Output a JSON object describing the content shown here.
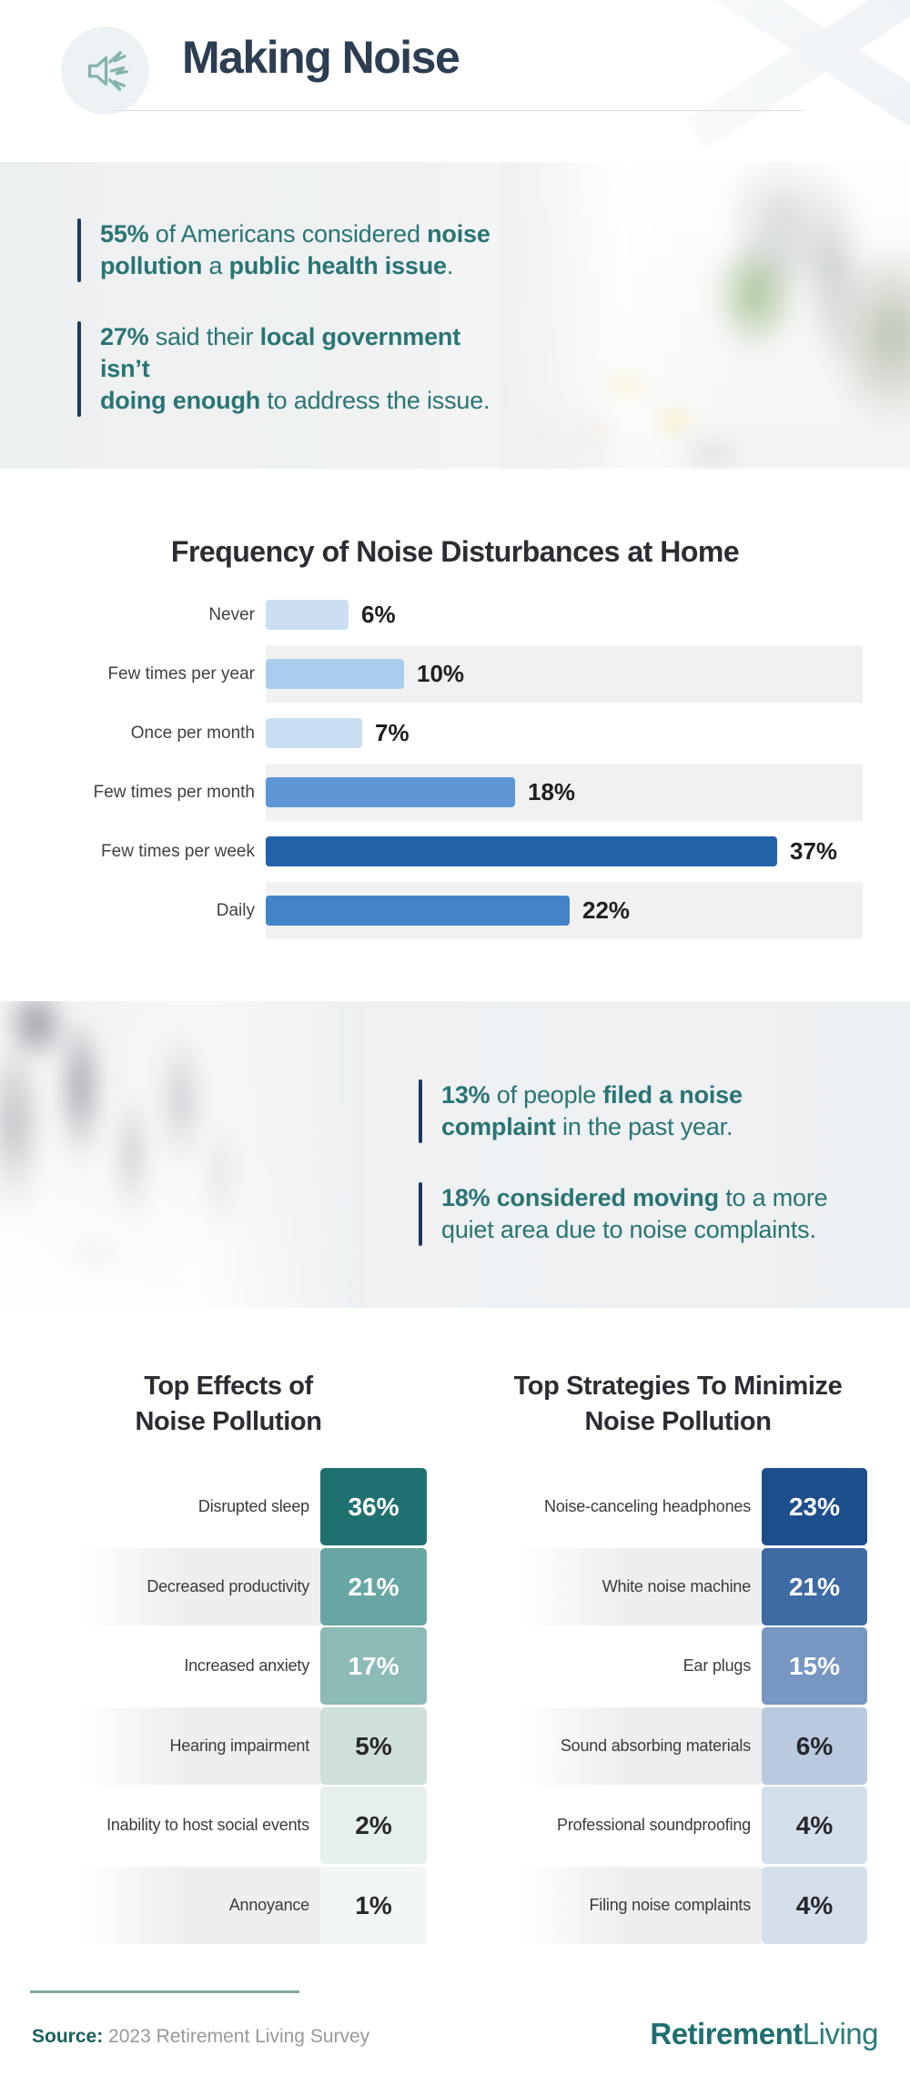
{
  "header": {
    "title": "Making Noise",
    "icon": "megaphone-icon"
  },
  "colors": {
    "navy": "#2d3e52",
    "teal": "#2a7474",
    "accent_bar": "#1c3a5e",
    "section_bg": "#edf0f2",
    "stripe": "#f1f1f2",
    "title_dark": "#2b2d33",
    "footer_line": "#7fa7a6",
    "logo_teal": "#1f6f70",
    "source_gray": "#97999b"
  },
  "stats_top": {
    "items": [
      {
        "lines": [
          [
            {
              "t": "55%",
              "b": true
            },
            {
              "t": " of Americans considered ",
              "b": false
            },
            {
              "t": "noise",
              "b": true
            }
          ],
          [
            {
              "t": "pollution",
              "b": true
            },
            {
              "t": " a ",
              "b": false
            },
            {
              "t": "public health issue",
              "b": true
            },
            {
              "t": ".",
              "b": false
            }
          ]
        ]
      },
      {
        "lines": [
          [
            {
              "t": "27%",
              "b": true
            },
            {
              "t": " said their ",
              "b": false
            },
            {
              "t": "local government isn’t",
              "b": true
            }
          ],
          [
            {
              "t": "doing enough",
              "b": true
            },
            {
              "t": " to address the issue.",
              "b": false
            }
          ]
        ]
      }
    ]
  },
  "stats_mid": {
    "items": [
      {
        "lines": [
          [
            {
              "t": "13%",
              "b": true
            },
            {
              "t": " of people ",
              "b": false
            },
            {
              "t": "filed a noise",
              "b": true
            }
          ],
          [
            {
              "t": "complaint",
              "b": true
            },
            {
              "t": " in the past year.",
              "b": false
            }
          ]
        ]
      },
      {
        "lines": [
          [
            {
              "t": "18% considered moving",
              "b": true
            },
            {
              "t": " to a more",
              "b": false
            }
          ],
          [
            {
              "t": "quiet area due to noise complaints.",
              "b": false
            }
          ]
        ]
      }
    ]
  },
  "chart_data": [
    {
      "type": "bar",
      "title": "Frequency of Noise Disturbances at Home",
      "orientation": "horizontal",
      "categories": [
        "Never",
        "Few times per year",
        "Once per month",
        "Few times per month",
        "Few times per week",
        "Daily"
      ],
      "values": [
        6,
        10,
        7,
        18,
        37,
        22
      ],
      "value_labels": [
        "6%",
        "10%",
        "7%",
        "18%",
        "37%",
        "22%"
      ],
      "bar_colors": [
        "#cbdff1",
        "#abccec",
        "#c9def1",
        "#5d95d5",
        "#2162a8",
        "#4384c9"
      ],
      "striped_rows": [
        1,
        3,
        5
      ],
      "xlim": [
        0,
        43
      ],
      "grid": false,
      "legend": "none"
    },
    {
      "type": "table",
      "title": "Top Effects of Noise Pollution",
      "title_lines": [
        "Top Effects of",
        "Noise Pollution"
      ],
      "rows": [
        {
          "label": "Disrupted sleep",
          "value": "36%",
          "color": "#1f7170",
          "text": "light",
          "striped": false
        },
        {
          "label": "Decreased productivity",
          "value": "21%",
          "color": "#68a6a3",
          "text": "light",
          "striped": true
        },
        {
          "label": "Increased anxiety",
          "value": "17%",
          "color": "#8cbab7",
          "text": "light",
          "striped": false
        },
        {
          "label": "Hearing impairment",
          "value": "5%",
          "color": "#cfdfdc",
          "text": "dark",
          "striped": true
        },
        {
          "label": "Inability to host social events",
          "value": "2%",
          "color": "#e5efed",
          "text": "dark",
          "striped": false
        },
        {
          "label": "Annoyance",
          "value": "1%",
          "color": "#f2f6f5",
          "text": "dark",
          "striped": true
        }
      ]
    },
    {
      "type": "table",
      "title": "Top Strategies To Minimize Noise Pollution",
      "title_lines": [
        "Top Strategies To Minimize",
        "Noise Pollution"
      ],
      "rows": [
        {
          "label": "Noise-canceling headphones",
          "value": "23%",
          "color": "#1d4e8c",
          "text": "light",
          "striped": false
        },
        {
          "label": "White noise machine",
          "value": "21%",
          "color": "#3e6ba4",
          "text": "light",
          "striped": true
        },
        {
          "label": "Ear plugs",
          "value": "15%",
          "color": "#7796c1",
          "text": "light",
          "striped": false
        },
        {
          "label": "Sound absorbing materials",
          "value": "6%",
          "color": "#bac9dd",
          "text": "dark",
          "striped": true
        },
        {
          "label": "Professional soundproofing",
          "value": "4%",
          "color": "#d4dfec",
          "text": "dark",
          "striped": false
        },
        {
          "label": "Filing noise complaints",
          "value": "4%",
          "color": "#d5dfec",
          "text": "dark",
          "striped": true
        }
      ]
    }
  ],
  "footer": {
    "source_label": "Source:",
    "source_text": "2023 Retirement Living Survey",
    "logo_bold": "Retirement",
    "logo_light": "Living"
  }
}
